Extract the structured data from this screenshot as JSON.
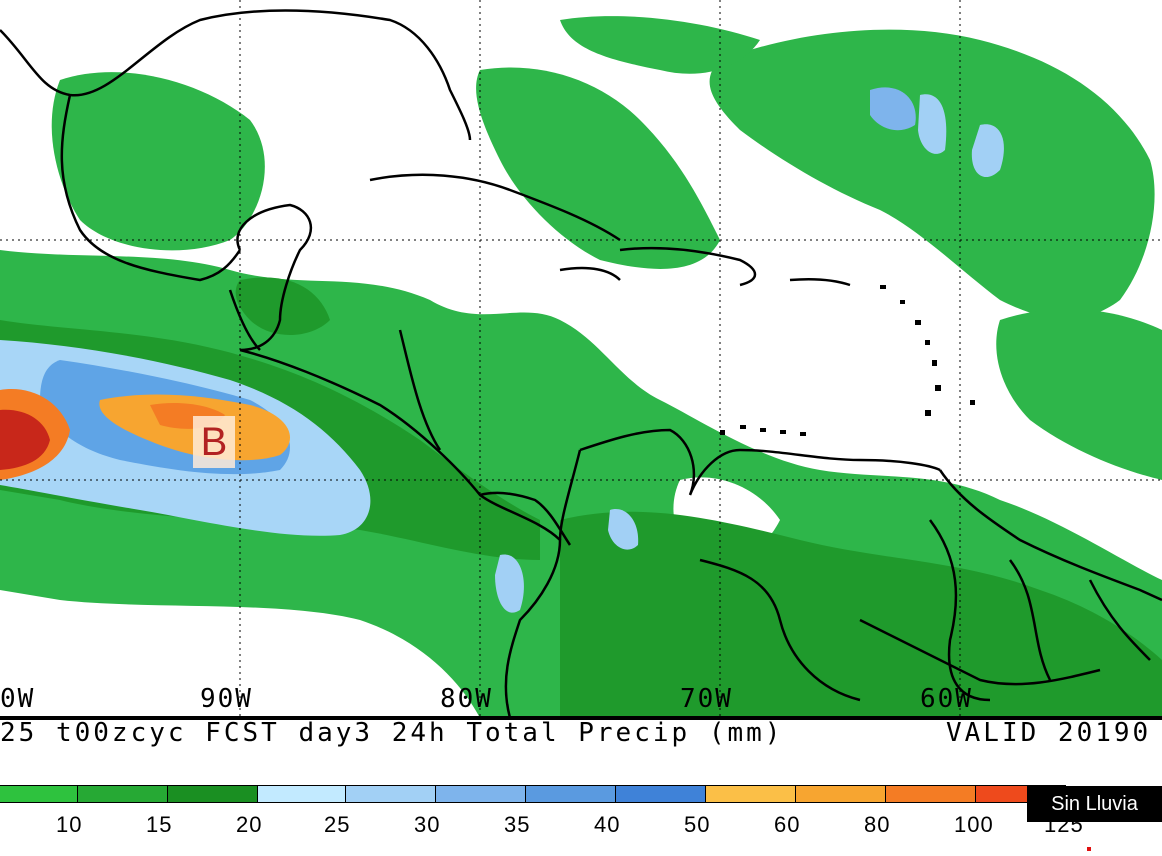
{
  "map": {
    "longitude_labels": [
      "0W",
      "90W",
      "80W",
      "70W",
      "60W"
    ],
    "low_pressure_marker": "B",
    "caption_left": "25 t00zcyc FCST day3 24h Total Precip (mm)",
    "caption_right": "VALID 20190",
    "overlay_badge": "Sin Lluvia"
  },
  "legend": {
    "colors": [
      "#2ec23e",
      "#26a934",
      "#1a8f22",
      "#c2eaff",
      "#a2d0f5",
      "#7eb4ec",
      "#5a9ae0",
      "#3f82d8",
      "#fbbf47",
      "#f7a530",
      "#f47c24",
      "#ee4a1c"
    ],
    "tick_labels": [
      "10",
      "15",
      "20",
      "25",
      "30",
      "35",
      "40",
      "50",
      "60",
      "80",
      "100",
      "125"
    ]
  }
}
